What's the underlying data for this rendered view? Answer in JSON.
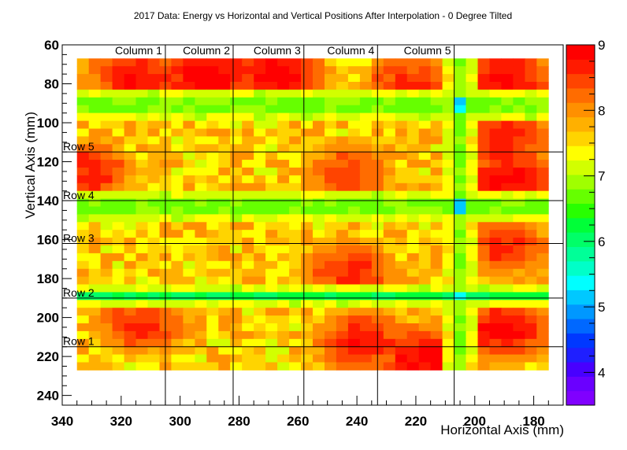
{
  "chart_data": {
    "type": "heatmap",
    "title": "2017 Data: Energy vs Horizontal and Vertical Positions After Interpolation - 0 Degree Tilted",
    "xlabel": "Horizontal Axis (mm)",
    "ylabel": "Vertical Axis (mm)",
    "xlim": [
      340,
      170
    ],
    "ylim": [
      245,
      60
    ],
    "x_reversed": true,
    "y_reversed": true,
    "x_ticks": [
      340,
      320,
      300,
      280,
      260,
      240,
      220,
      200,
      180
    ],
    "y_ticks": [
      60,
      80,
      100,
      120,
      140,
      160,
      180,
      200,
      220,
      240
    ],
    "z_range": [
      3.5,
      9
    ],
    "z_ticks": [
      4,
      5,
      6,
      7,
      8,
      9
    ],
    "data_extent": {
      "x": [
        335,
        175
      ],
      "y": [
        67,
        227
      ]
    },
    "cell_size_mm": 4,
    "columns": [
      {
        "label": "Column 1",
        "x": 305
      },
      {
        "label": "Column 2",
        "x": 282
      },
      {
        "label": "Column 3",
        "x": 258
      },
      {
        "label": "Column 4",
        "x": 233
      },
      {
        "label": "Column 5",
        "x": 207
      }
    ],
    "rows": [
      {
        "label": "Row 5",
        "y": 115
      },
      {
        "label": "Row 4",
        "y": 140
      },
      {
        "label": "Row 3",
        "y": 162
      },
      {
        "label": "Row 2",
        "y": 190
      },
      {
        "label": "Row 1",
        "y": 215
      }
    ],
    "low_energy_bands": {
      "horizontal_y": [
        91,
        143,
        189
      ],
      "vertical_x": [
        204
      ]
    },
    "hot_spots": [
      {
        "x": 315,
        "y": 77,
        "z": 8.8
      },
      {
        "x": 290,
        "y": 76,
        "z": 8.9
      },
      {
        "x": 268,
        "y": 77,
        "z": 8.9
      },
      {
        "x": 222,
        "y": 80,
        "z": 8.6
      },
      {
        "x": 190,
        "y": 78,
        "z": 8.8
      },
      {
        "x": 190,
        "y": 108,
        "z": 8.7
      },
      {
        "x": 188,
        "y": 128,
        "z": 8.8
      },
      {
        "x": 333,
        "y": 125,
        "z": 8.7
      },
      {
        "x": 243,
        "y": 126,
        "z": 8.5
      },
      {
        "x": 190,
        "y": 163,
        "z": 8.6
      },
      {
        "x": 243,
        "y": 176,
        "z": 8.6
      },
      {
        "x": 313,
        "y": 203,
        "z": 8.6
      },
      {
        "x": 238,
        "y": 212,
        "z": 8.7
      },
      {
        "x": 216,
        "y": 221,
        "z": 8.9
      },
      {
        "x": 190,
        "y": 206,
        "z": 8.8
      }
    ],
    "colormap": [
      "#8000ff",
      "#6a00ff",
      "#4800ff",
      "#1f1fff",
      "#0038ff",
      "#0068ff",
      "#0098ff",
      "#00c8ff",
      "#00ffff",
      "#00ffc8",
      "#00ff98",
      "#00ff68",
      "#00ff38",
      "#28ff00",
      "#66ff00",
      "#a0ff00",
      "#d2ff00",
      "#ffff00",
      "#ffd400",
      "#ffb000",
      "#ff9000",
      "#ff6c00",
      "#ff4400",
      "#ff1a00",
      "#ff0000"
    ]
  }
}
